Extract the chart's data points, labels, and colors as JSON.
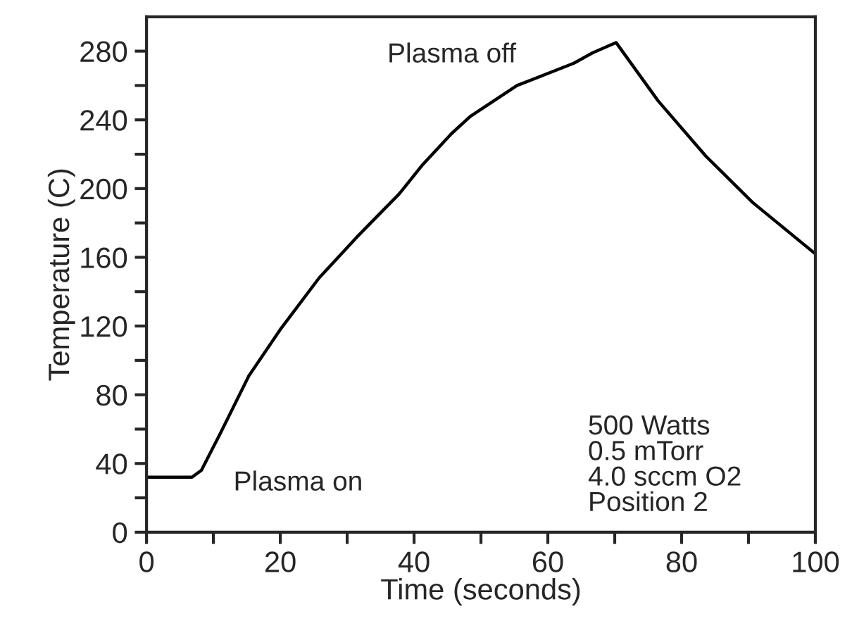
{
  "chart_data": {
    "type": "line",
    "xlabel": "Time (seconds)",
    "ylabel": "Temperature (C)",
    "xlim": [
      0,
      100
    ],
    "ylim": [
      0,
      300
    ],
    "xticks": [
      0,
      {
        "value": 10,
        "label": null
      },
      20,
      {
        "value": 30,
        "label": null
      },
      40,
      {
        "value": 50,
        "label": null
      },
      60,
      {
        "value": 70,
        "label": null
      },
      80,
      {
        "value": 90,
        "label": null
      },
      100
    ],
    "yticks": [
      0,
      {
        "value": 20,
        "label": null
      },
      40,
      {
        "value": 60,
        "label": null
      },
      80,
      {
        "value": 100,
        "label": null
      },
      120,
      {
        "value": 140,
        "label": null
      },
      160,
      {
        "value": 180,
        "label": null
      },
      200,
      {
        "value": 220,
        "label": null
      },
      240,
      {
        "value": 260,
        "label": null
      },
      280
    ],
    "grid": false,
    "marker": "none",
    "line_style": "solid",
    "series": [
      {
        "color": "#000000",
        "x": [
          0,
          6.8,
          8.2,
          11.1,
          15.3,
          20,
          25.8,
          31.5,
          37.8,
          41.3,
          45.6,
          48.4,
          55.4,
          63.9,
          66.7,
          70.2,
          76.5,
          83.6,
          90.6,
          100
        ],
        "values": [
          32,
          32,
          36,
          58,
          91,
          118,
          148,
          172,
          197,
          214,
          232,
          242,
          260,
          273,
          279,
          285,
          251,
          219,
          192,
          162
        ]
      }
    ],
    "annotations": [
      "Plasma off",
      "Plasma on",
      "500 Watts\n0.5 mTorr\n4.0 sccm O2\nPosition 2"
    ]
  }
}
